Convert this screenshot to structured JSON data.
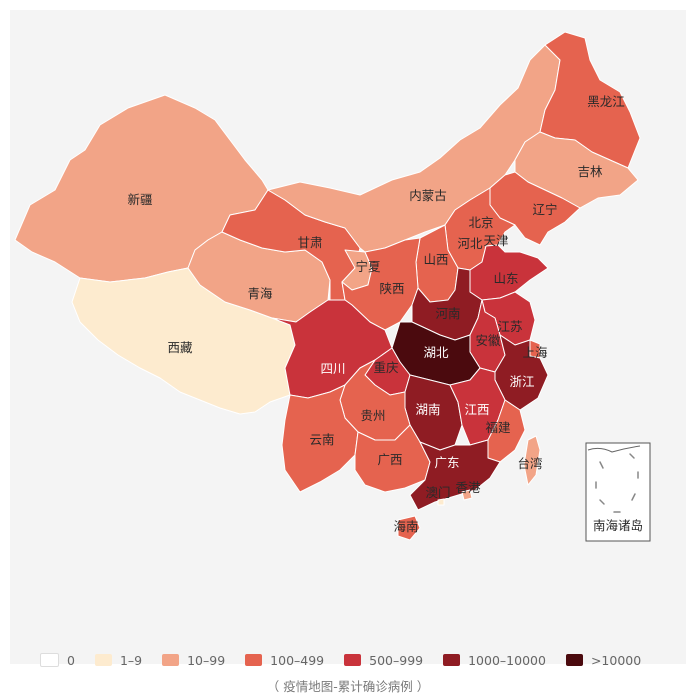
{
  "caption": "（ 疫情地图-累计确诊病例 ）",
  "colors": {
    "c0": "#ffffff",
    "c1": "#fdebcf",
    "c2": "#f2a487",
    "c3": "#e5634f",
    "c4": "#c9333b",
    "c5": "#8f1c23",
    "c6": "#4b0a0e",
    "border": "#ffffff",
    "inset_border": "#555555"
  },
  "legend": [
    {
      "label": "0",
      "color": "#ffffff"
    },
    {
      "label": "1–9",
      "color": "#fdebcf"
    },
    {
      "label": "10–99",
      "color": "#f2a487"
    },
    {
      "label": "100–499",
      "color": "#e5634f"
    },
    {
      "label": "500–999",
      "color": "#c9333b"
    },
    {
      "label": "1000–10000",
      "color": "#8f1c23"
    },
    {
      "label": ">10000",
      "color": "#4b0a0e"
    }
  ],
  "provinces": [
    {
      "id": "xinjiang",
      "name": "新疆",
      "category": "10-99"
    },
    {
      "id": "xizang",
      "name": "西藏",
      "category": "1-9"
    },
    {
      "id": "qinghai",
      "name": "青海",
      "category": "10-99"
    },
    {
      "id": "gansu",
      "name": "甘肃",
      "category": "100-499"
    },
    {
      "id": "neimenggu",
      "name": "内蒙古",
      "category": "10-99"
    },
    {
      "id": "heilongjiang",
      "name": "黑龙江",
      "category": "100-499"
    },
    {
      "id": "jilin",
      "name": "吉林",
      "category": "10-99"
    },
    {
      "id": "liaoning",
      "name": "辽宁",
      "category": "100-499"
    },
    {
      "id": "beijing",
      "name": "北京",
      "category": "100-499"
    },
    {
      "id": "tianjin",
      "name": "天津",
      "category": "100-499"
    },
    {
      "id": "hebei",
      "name": "河北",
      "category": "100-499"
    },
    {
      "id": "shanxi",
      "name": "山西",
      "category": "100-499"
    },
    {
      "id": "ningxia",
      "name": "宁夏",
      "category": "10-99"
    },
    {
      "id": "shaanxi",
      "name": "陕西",
      "category": "100-499"
    },
    {
      "id": "shandong",
      "name": "山东",
      "category": "500-999"
    },
    {
      "id": "henan",
      "name": "河南",
      "category": "1000-10000"
    },
    {
      "id": "jiangsu",
      "name": "江苏",
      "category": "500-999"
    },
    {
      "id": "anhui",
      "name": "安徽",
      "category": "500-999"
    },
    {
      "id": "shanghai",
      "name": "上海",
      "category": "100-499"
    },
    {
      "id": "zhejiang",
      "name": "浙江",
      "category": "1000-10000"
    },
    {
      "id": "hubei",
      "name": "湖北",
      "category": ">10000"
    },
    {
      "id": "sichuan",
      "name": "四川",
      "category": "500-999"
    },
    {
      "id": "chongqing",
      "name": "重庆",
      "category": "500-999"
    },
    {
      "id": "hunan",
      "name": "湖南",
      "category": "1000-10000"
    },
    {
      "id": "jiangxi",
      "name": "江西",
      "category": "500-999"
    },
    {
      "id": "guizhou",
      "name": "贵州",
      "category": "100-499"
    },
    {
      "id": "yunnan",
      "name": "云南",
      "category": "100-499"
    },
    {
      "id": "guangxi",
      "name": "广西",
      "category": "100-499"
    },
    {
      "id": "guangdong",
      "name": "广东",
      "category": "1000-10000"
    },
    {
      "id": "fujian",
      "name": "福建",
      "category": "100-499"
    },
    {
      "id": "taiwan",
      "name": "台湾",
      "category": "10-99"
    },
    {
      "id": "hongkong",
      "name": "香港",
      "category": "10-99"
    },
    {
      "id": "macau",
      "name": "澳门",
      "category": "1-9"
    },
    {
      "id": "hainan",
      "name": "海南",
      "category": "100-499"
    }
  ],
  "inset": {
    "label": "南海诸岛"
  }
}
